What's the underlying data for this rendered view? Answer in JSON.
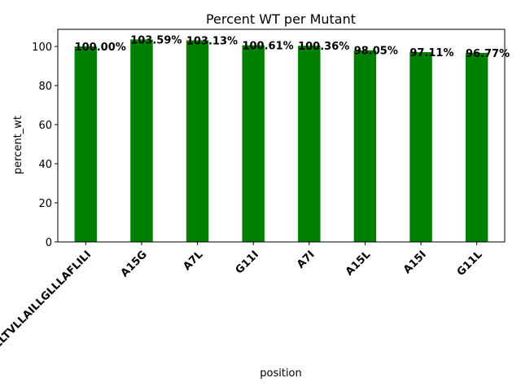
{
  "chart_data": {
    "type": "bar",
    "title": "Percent WT per Mutant",
    "xlabel": "position",
    "ylabel": "percent_wt",
    "categories": [
      "LLLTVLLAILLGLLLAFLILI",
      "A15G",
      "A7L",
      "G11I",
      "A7I",
      "A15L",
      "A15I",
      "G11L"
    ],
    "values": [
      100.0,
      103.59,
      103.13,
      100.61,
      100.36,
      98.05,
      97.11,
      96.77
    ],
    "data_labels": [
      "100.00%",
      "103.59%",
      "103.13%",
      "100.61%",
      "100.36%",
      "98.05%",
      "97.11%",
      "96.77%"
    ],
    "ylim": [
      0,
      108.77
    ],
    "yticks": [
      0,
      20,
      40,
      60,
      80,
      100
    ],
    "grid": false,
    "colors": {
      "bar": "#008000"
    }
  }
}
